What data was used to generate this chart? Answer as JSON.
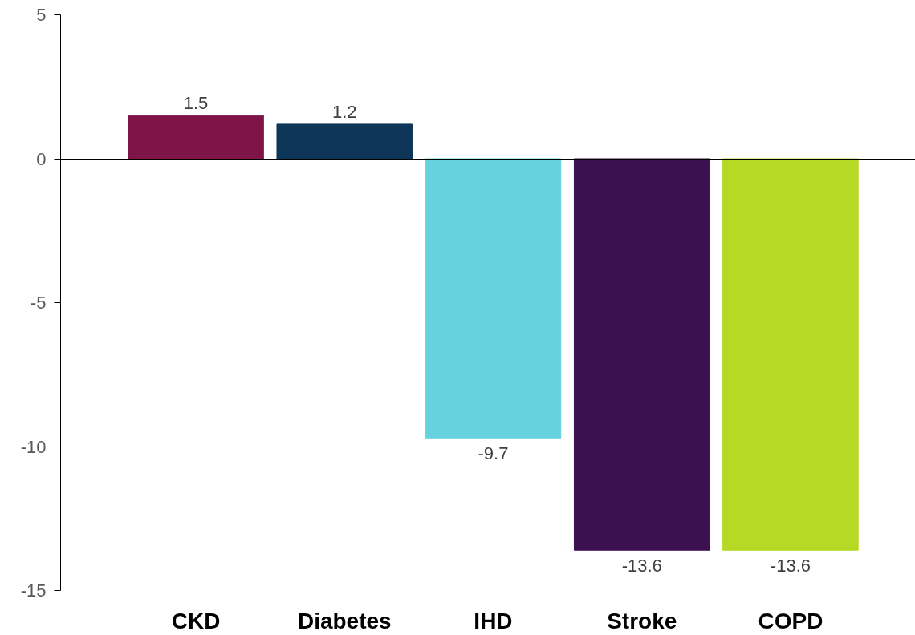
{
  "chart_data": {
    "type": "bar",
    "categories": [
      "CKD",
      "Diabetes",
      "IHD",
      "Stroke",
      "COPD"
    ],
    "values": [
      1.5,
      1.2,
      -9.7,
      -13.6,
      -13.6
    ],
    "colors": [
      "#7f1449",
      "#0d3659",
      "#64d2df",
      "#3d1150",
      "#b5d924"
    ],
    "ylim": [
      -15,
      5
    ],
    "yticks": [
      -15,
      -10,
      -5,
      0,
      5
    ],
    "data_labels": true
  }
}
